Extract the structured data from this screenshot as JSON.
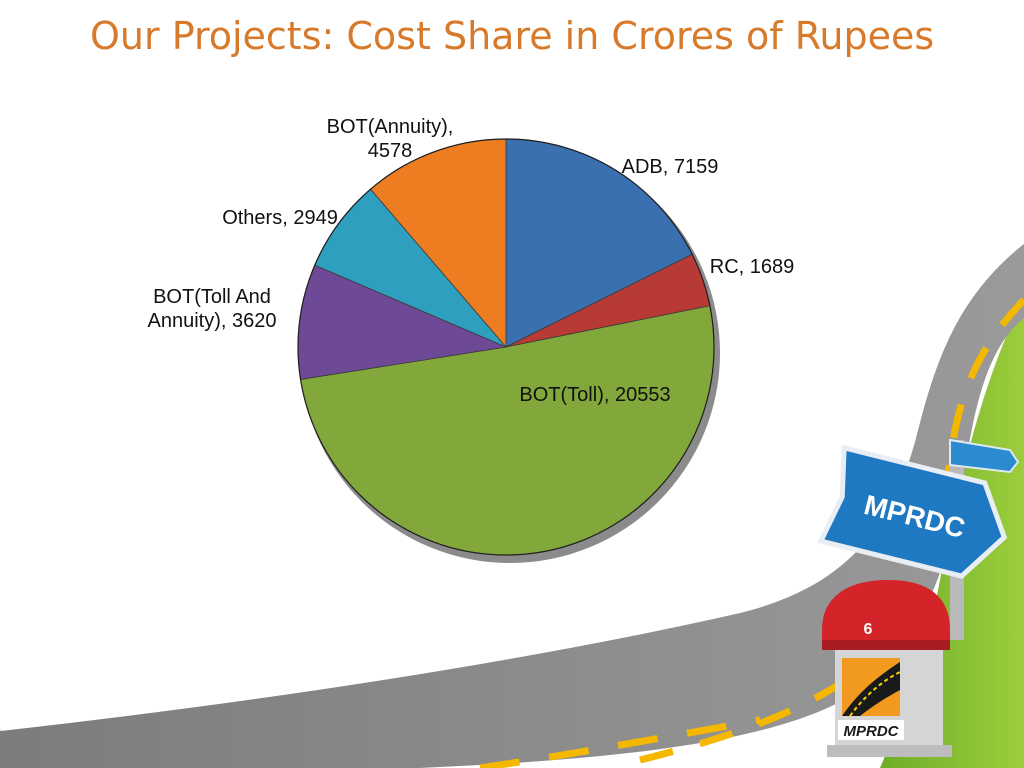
{
  "slide": {
    "title": "Our Projects: Cost Share in Crores of Rupees",
    "page_number": "6",
    "sign_text": "MPRDC",
    "logo_text": "MPRDC"
  },
  "chart_data": {
    "type": "pie",
    "title": "",
    "slices": [
      {
        "label": "ADB",
        "value": 7159,
        "color": "#3a6fb0"
      },
      {
        "label": "RC",
        "value": 1689,
        "color": "#b83a34"
      },
      {
        "label": "BOT(Toll)",
        "value": 20553,
        "color": "#82a83c"
      },
      {
        "label": "BOT(Toll And Annuity)",
        "value": 3620,
        "color": "#6e4a96"
      },
      {
        "label": "Others",
        "value": 2949,
        "color": "#2f9fbf"
      },
      {
        "label": "BOT(Annuity)",
        "value": 4578,
        "color": "#ed7d20"
      }
    ],
    "data_labels": [
      {
        "lines": [
          "ADB, 7159"
        ]
      },
      {
        "lines": [
          "RC, 1689"
        ]
      },
      {
        "lines": [
          "BOT(Toll), 20553"
        ]
      },
      {
        "lines": [
          "BOT(Toll And",
          "Annuity), 3620"
        ]
      },
      {
        "lines": [
          "Others, 2949"
        ]
      },
      {
        "lines": [
          "BOT(Annuity),",
          "4578"
        ]
      }
    ],
    "legend": "none"
  },
  "colors": {
    "title": "#d87a2b",
    "grass": "#8dc63f",
    "road": "#8a8a8a",
    "road_marking": "#f5b800",
    "sign": "#1e78c2",
    "milestone_top": "#d4242a"
  }
}
